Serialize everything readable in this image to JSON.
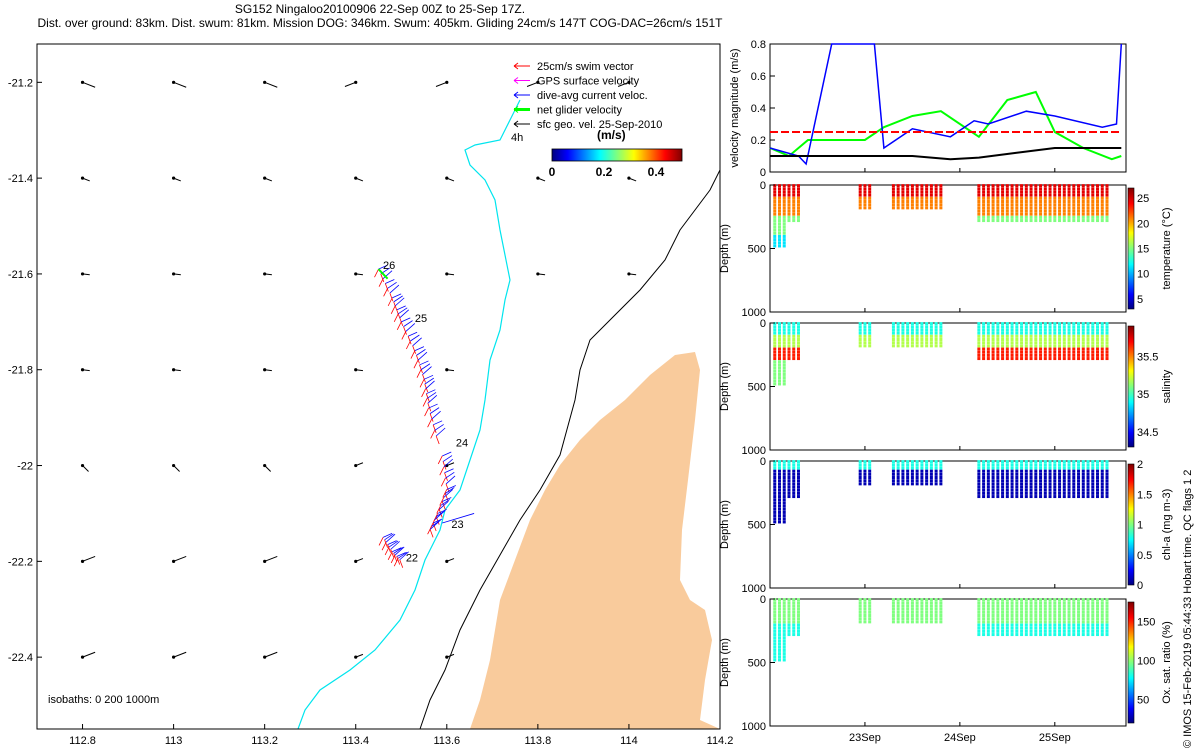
{
  "header": {
    "title_line1": "SG152 Ningaloo20100906 22-Sep 00Z to 25-Sep 17Z.",
    "title_line2": "Dist. over ground: 83km. Dist. swum: 81km. Mission DOG: 346km. Swum: 405km. Gliding 24cm/s 147T COG-DAC=26cm/s 151T"
  },
  "watermark": "© IMOS 15-Feb-2019 05:44:33 Hobart time. QC flags 1  2",
  "colors": {
    "land": "#f9cb9c",
    "coast_line": "#00e5ee",
    "swim_vector": "#ff0000",
    "gps_velocity": "#ff00ff",
    "dac_velocity": "#0000ff",
    "net_velocity": "#00ff00",
    "geo_velocity": "#000000"
  },
  "chart_data": [
    {
      "type": "scatter",
      "name": "map",
      "x_ticks": [
        "112.8",
        "113",
        "113.2",
        "113.4",
        "113.6",
        "113.8",
        "114",
        "114.2"
      ],
      "y_ticks": [
        "-21.2",
        "-21.4",
        "-21.6",
        "-21.8",
        "-22",
        "-22.2",
        "-22.4"
      ],
      "xlim": [
        112.7,
        114.2
      ],
      "ylim": [
        -22.55,
        -21.12
      ],
      "legend": [
        "25cm/s swim vector",
        "GPS surface velocity",
        "dive-avg current veloc.",
        "net glider velocity",
        "sfc geo. vel. 25-Sep-2010"
      ],
      "legend_placement": "top-right",
      "annotation_4h": "4h",
      "colorbar_unit": "(m/s)",
      "colorbar_ticks": [
        "0",
        "0.2",
        "0.4"
      ],
      "colorbar_range": [
        0,
        0.5
      ],
      "isobath_label": "isobaths: 0   200  1000m",
      "day_labels": [
        {
          "text": "26",
          "lon": 113.46,
          "lat": -21.59
        },
        {
          "text": "25",
          "lon": 113.53,
          "lat": -21.7
        },
        {
          "text": "24",
          "lon": 113.62,
          "lat": -21.96
        },
        {
          "text": "23",
          "lon": 113.61,
          "lat": -22.13
        },
        {
          "text": "22",
          "lon": 113.51,
          "lat": -22.2
        }
      ]
    },
    {
      "type": "line",
      "name": "velocity",
      "ylabel": "velocity magnitude (m/s)",
      "ylim": [
        0,
        0.8
      ],
      "y_ticks": [
        "0",
        "0.2",
        "0.4",
        "0.6",
        "0.8"
      ],
      "x_ticks": [
        "23Sep",
        "24Sep",
        "25Sep"
      ],
      "x_range_days": [
        22.0,
        25.75
      ],
      "series_black": {
        "x": [
          22.0,
          22.5,
          23.0,
          23.5,
          23.9,
          24.2,
          24.6,
          25.0,
          25.4,
          25.7
        ],
        "y": [
          0.1,
          0.1,
          0.1,
          0.1,
          0.08,
          0.09,
          0.12,
          0.15,
          0.15,
          0.15
        ]
      },
      "series_red": {
        "x": [
          22.0,
          25.7
        ],
        "y": [
          0.25,
          0.25
        ]
      },
      "series_blue": {
        "x": [
          22.0,
          22.3,
          22.38,
          22.65,
          23.1,
          23.2,
          23.5,
          23.9,
          24.15,
          24.3,
          24.7,
          25.0,
          25.5,
          25.65,
          25.7
        ],
        "y": [
          0.15,
          0.1,
          0.05,
          0.8,
          0.8,
          0.15,
          0.27,
          0.22,
          0.32,
          0.3,
          0.38,
          0.35,
          0.28,
          0.3,
          0.8
        ]
      },
      "series_green": {
        "x": [
          22.0,
          22.2,
          22.4,
          22.7,
          23.0,
          23.2,
          23.5,
          23.8,
          24.2,
          24.5,
          24.8,
          25.0,
          25.3,
          25.6,
          25.7
        ],
        "y": [
          0.15,
          0.1,
          0.2,
          0.2,
          0.2,
          0.28,
          0.35,
          0.38,
          0.22,
          0.45,
          0.5,
          0.25,
          0.15,
          0.08,
          0.1
        ]
      }
    },
    {
      "type": "heatmap",
      "name": "temperature",
      "ylabel": "Depth (m)",
      "clabel": "temperature (°C)",
      "ylim": [
        1000,
        0
      ],
      "y_ticks": [
        "0",
        "500",
        "1000"
      ],
      "c_ticks": [
        "5",
        "10",
        "15",
        "20",
        "25"
      ],
      "crange": [
        3,
        27
      ]
    },
    {
      "type": "heatmap",
      "name": "salinity",
      "ylabel": "Depth (m)",
      "clabel": "salinity",
      "ylim": [
        1000,
        0
      ],
      "y_ticks": [
        "0",
        "500",
        "1000"
      ],
      "c_ticks": [
        "34.5",
        "35",
        "35.5"
      ],
      "crange": [
        34.3,
        35.9
      ]
    },
    {
      "type": "heatmap",
      "name": "chla",
      "ylabel": "Depth (m)",
      "clabel": "chl-a (mg m-3)",
      "ylim": [
        1000,
        0
      ],
      "y_ticks": [
        "0",
        "500",
        "1000"
      ],
      "c_ticks": [
        "0",
        "0.5",
        "1",
        "1.5",
        "2"
      ],
      "crange": [
        0,
        2
      ]
    },
    {
      "type": "heatmap",
      "name": "oxygen",
      "ylabel": "Depth (m)",
      "clabel": "Ox. sat. ratio (%)",
      "ylim": [
        1000,
        0
      ],
      "y_ticks": [
        "0",
        "500",
        "1000"
      ],
      "c_ticks": [
        "50",
        "100",
        "150"
      ],
      "crange": [
        20,
        175
      ]
    }
  ]
}
